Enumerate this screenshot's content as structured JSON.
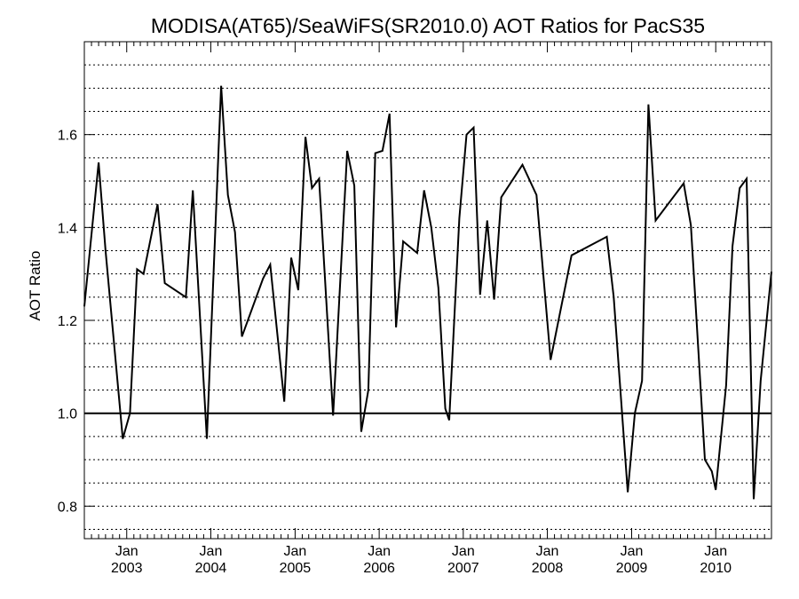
{
  "chart_data": {
    "type": "line",
    "title": "MODISA(AT65)/SeaWiFS(SR2010.0)  AOT Ratios for PacS35",
    "xlabel": "",
    "ylabel": "AOT Ratio",
    "xlim": [
      "2002-07-01",
      "2010-08-31"
    ],
    "ylim": [
      0.73,
      1.8
    ],
    "y_ticks": [
      "0.8",
      "1.0",
      "1.2",
      "1.4",
      "1.6"
    ],
    "x_ticks": [
      {
        "month": "Jan",
        "year": "2003",
        "date": "2003-01-01"
      },
      {
        "month": "Jan",
        "year": "2004",
        "date": "2004-01-01"
      },
      {
        "month": "Jan",
        "year": "2005",
        "date": "2005-01-01"
      },
      {
        "month": "Jan",
        "year": "2006",
        "date": "2006-01-01"
      },
      {
        "month": "Jan",
        "year": "2007",
        "date": "2007-01-01"
      },
      {
        "month": "Jan",
        "year": "2008",
        "date": "2008-01-01"
      },
      {
        "month": "Jan",
        "year": "2009",
        "date": "2009-01-01"
      },
      {
        "month": "Jan",
        "year": "2010",
        "date": "2010-01-01"
      }
    ],
    "grid": "dotted-horizontal",
    "reference_line": 1.0,
    "series": [
      {
        "color": "#000000",
        "points": [
          [
            "2002-07-01",
            1.23
          ],
          [
            "2002-09-01",
            1.54
          ],
          [
            "2002-10-01",
            1.35
          ],
          [
            "2002-12-15",
            0.945
          ],
          [
            "2003-01-15",
            1.0
          ],
          [
            "2003-02-15",
            1.31
          ],
          [
            "2003-03-15",
            1.3
          ],
          [
            "2003-05-15",
            1.45
          ],
          [
            "2003-06-15",
            1.28
          ],
          [
            "2003-09-15",
            1.25
          ],
          [
            "2003-10-15",
            1.48
          ],
          [
            "2003-12-15",
            0.945
          ],
          [
            "2004-02-15",
            1.705
          ],
          [
            "2004-03-15",
            1.47
          ],
          [
            "2004-04-15",
            1.39
          ],
          [
            "2004-05-15",
            1.165
          ],
          [
            "2004-08-15",
            1.29
          ],
          [
            "2004-09-15",
            1.32
          ],
          [
            "2004-11-15",
            1.025
          ],
          [
            "2004-12-15",
            1.335
          ],
          [
            "2005-01-15",
            1.265
          ],
          [
            "2005-02-15",
            1.595
          ],
          [
            "2005-03-15",
            1.485
          ],
          [
            "2005-04-15",
            1.505
          ],
          [
            "2005-06-15",
            0.995
          ],
          [
            "2005-08-15",
            1.565
          ],
          [
            "2005-09-15",
            1.49
          ],
          [
            "2005-10-15",
            0.96
          ],
          [
            "2005-11-15",
            1.05
          ],
          [
            "2005-12-15",
            1.56
          ],
          [
            "2006-01-15",
            1.565
          ],
          [
            "2006-02-15",
            1.645
          ],
          [
            "2006-03-15",
            1.185
          ],
          [
            "2006-04-15",
            1.37
          ],
          [
            "2006-06-15",
            1.345
          ],
          [
            "2006-07-15",
            1.48
          ],
          [
            "2006-08-15",
            1.4
          ],
          [
            "2006-09-15",
            1.27
          ],
          [
            "2006-10-15",
            1.01
          ],
          [
            "2006-11-01",
            0.985
          ],
          [
            "2006-12-15",
            1.42
          ],
          [
            "2007-01-15",
            1.6
          ],
          [
            "2007-02-15",
            1.615
          ],
          [
            "2007-03-15",
            1.255
          ],
          [
            "2007-04-15",
            1.415
          ],
          [
            "2007-05-15",
            1.245
          ],
          [
            "2007-06-15",
            1.465
          ],
          [
            "2007-09-15",
            1.535
          ],
          [
            "2007-11-15",
            1.47
          ],
          [
            "2008-01-15",
            1.115
          ],
          [
            "2008-04-15",
            1.34
          ],
          [
            "2008-09-15",
            1.38
          ],
          [
            "2008-10-15",
            1.25
          ],
          [
            "2008-12-15",
            0.83
          ],
          [
            "2009-01-15",
            1.0
          ],
          [
            "2009-02-15",
            1.07
          ],
          [
            "2009-03-15",
            1.665
          ],
          [
            "2009-04-15",
            1.415
          ],
          [
            "2009-08-15",
            1.495
          ],
          [
            "2009-09-15",
            1.405
          ],
          [
            "2009-11-15",
            0.9
          ],
          [
            "2009-12-15",
            0.875
          ],
          [
            "2010-01-01",
            0.835
          ],
          [
            "2010-02-15",
            1.06
          ],
          [
            "2010-03-15",
            1.36
          ],
          [
            "2010-04-15",
            1.485
          ],
          [
            "2010-05-15",
            1.505
          ],
          [
            "2010-06-15",
            0.815
          ],
          [
            "2010-07-15",
            1.07
          ],
          [
            "2010-08-31",
            1.305
          ]
        ]
      }
    ]
  }
}
